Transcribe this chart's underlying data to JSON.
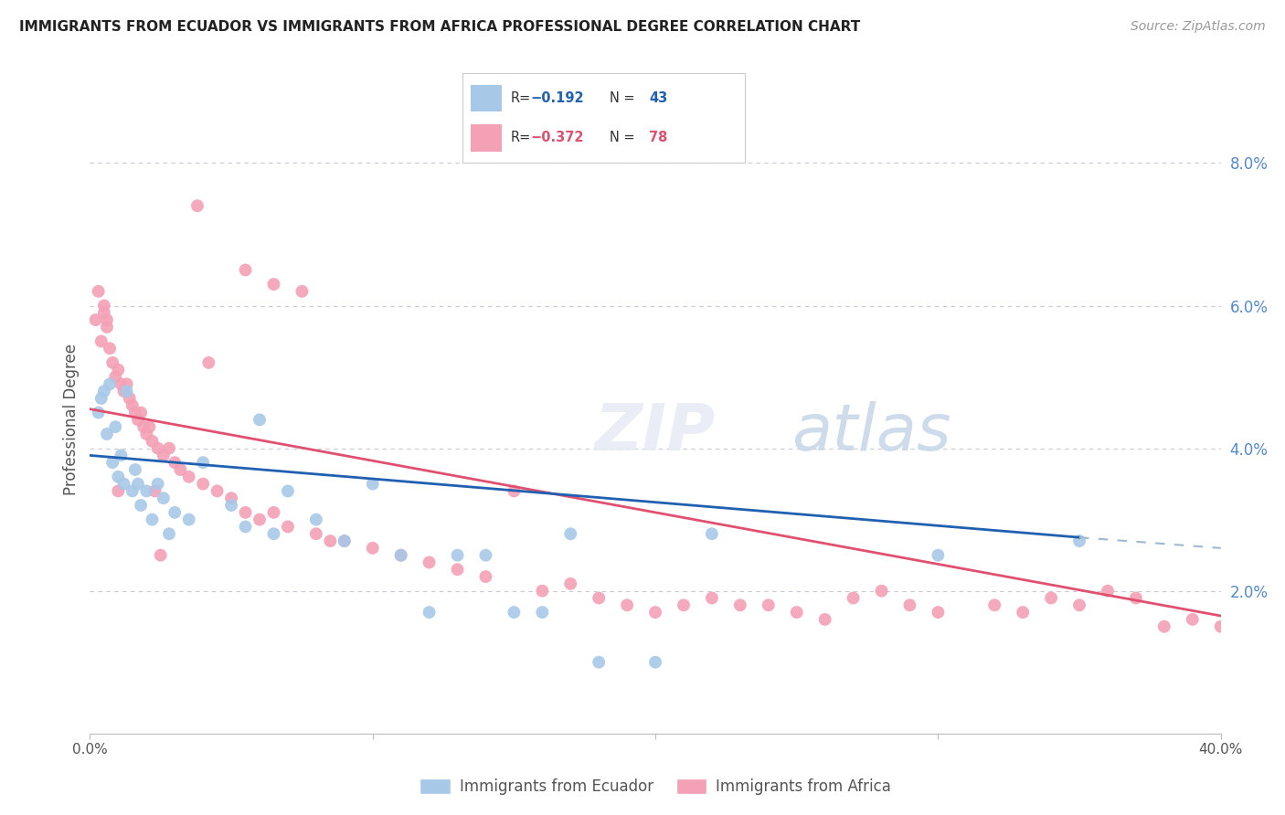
{
  "title": "IMMIGRANTS FROM ECUADOR VS IMMIGRANTS FROM AFRICA PROFESSIONAL DEGREE CORRELATION CHART",
  "source": "Source: ZipAtlas.com",
  "ylabel": "Professional Degree",
  "xlim": [
    0.0,
    40.0
  ],
  "ylim": [
    0.0,
    8.8
  ],
  "series1_color": "#a8c8e8",
  "series2_color": "#f4a0b5",
  "line1_color": "#2060b0",
  "line2_color": "#e05070",
  "line1_dash_color": "#a0b8d0",
  "background_color": "#ffffff",
  "grid_color": "#c8c8d8",
  "ecuador_x": [
    0.3,
    0.4,
    0.5,
    0.6,
    0.7,
    0.8,
    0.9,
    1.0,
    1.1,
    1.2,
    1.3,
    1.5,
    1.6,
    1.7,
    1.8,
    2.0,
    2.2,
    2.4,
    2.6,
    2.8,
    3.0,
    3.5,
    4.0,
    5.0,
    5.5,
    6.0,
    6.5,
    7.0,
    8.0,
    9.0,
    10.0,
    11.0,
    12.0,
    13.0,
    14.0,
    15.0,
    16.0,
    17.0,
    18.0,
    20.0,
    22.0,
    30.0,
    35.0
  ],
  "ecuador_y": [
    4.5,
    4.7,
    4.8,
    4.2,
    4.9,
    3.8,
    4.3,
    3.6,
    3.9,
    3.5,
    4.8,
    3.4,
    3.7,
    3.5,
    3.2,
    3.4,
    3.0,
    3.5,
    3.3,
    2.8,
    3.1,
    3.0,
    3.8,
    3.2,
    2.9,
    4.4,
    2.8,
    3.4,
    3.0,
    2.7,
    3.5,
    2.5,
    1.7,
    2.5,
    2.5,
    1.7,
    1.7,
    2.8,
    1.0,
    1.0,
    2.8,
    2.5,
    2.7
  ],
  "africa_x": [
    0.2,
    0.3,
    0.4,
    0.5,
    0.6,
    0.7,
    0.8,
    0.9,
    1.0,
    1.1,
    1.2,
    1.3,
    1.4,
    1.5,
    1.6,
    1.7,
    1.8,
    1.9,
    2.0,
    2.1,
    2.2,
    2.4,
    2.6,
    2.8,
    3.0,
    3.2,
    3.5,
    4.0,
    4.5,
    5.0,
    5.5,
    6.0,
    6.5,
    7.0,
    8.0,
    8.5,
    9.0,
    10.0,
    11.0,
    12.0,
    13.0,
    14.0,
    16.0,
    17.0,
    18.0,
    19.0,
    20.0,
    21.0,
    22.0,
    23.0,
    24.0,
    25.0,
    26.0,
    27.0,
    28.0,
    29.0,
    30.0,
    32.0,
    33.0,
    34.0,
    35.0,
    36.0,
    37.0,
    38.0,
    39.0,
    40.0,
    3.8,
    4.2,
    5.5,
    6.5,
    7.5,
    2.5,
    0.5,
    0.6,
    1.0,
    2.3,
    15.0
  ],
  "africa_y": [
    5.8,
    6.2,
    5.5,
    5.9,
    5.7,
    5.4,
    5.2,
    5.0,
    5.1,
    4.9,
    4.8,
    4.9,
    4.7,
    4.6,
    4.5,
    4.4,
    4.5,
    4.3,
    4.2,
    4.3,
    4.1,
    4.0,
    3.9,
    4.0,
    3.8,
    3.7,
    3.6,
    3.5,
    3.4,
    3.3,
    3.1,
    3.0,
    3.1,
    2.9,
    2.8,
    2.7,
    2.7,
    2.6,
    2.5,
    2.4,
    2.3,
    2.2,
    2.0,
    2.1,
    1.9,
    1.8,
    1.7,
    1.8,
    1.9,
    1.8,
    1.8,
    1.7,
    1.6,
    1.9,
    2.0,
    1.8,
    1.7,
    1.8,
    1.7,
    1.9,
    1.8,
    2.0,
    1.9,
    1.5,
    1.6,
    1.5,
    7.4,
    5.2,
    6.5,
    6.3,
    6.2,
    2.5,
    6.0,
    5.8,
    3.4,
    3.4,
    3.4
  ],
  "line1_x_solid_start": 0.0,
  "line1_x_solid_end": 35.0,
  "line1_x_dash_start": 35.0,
  "line1_x_dash_end": 40.0,
  "line1_y_at_0": 3.9,
  "line1_y_at_35": 2.75,
  "line1_y_at_40": 2.6,
  "line2_x_start": 0.0,
  "line2_x_end": 40.0,
  "line2_y_at_0": 4.55,
  "line2_y_at_40": 1.65
}
